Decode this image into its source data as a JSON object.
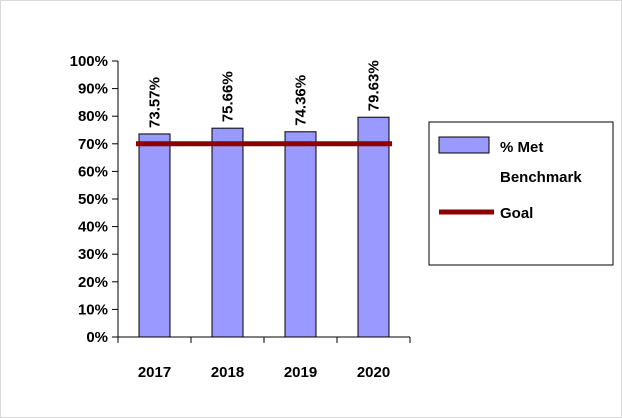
{
  "chart_data": {
    "type": "bar",
    "title": "",
    "xlabel": "",
    "ylabel": "",
    "categories": [
      "2017",
      "2018",
      "2019",
      "2020"
    ],
    "series": [
      {
        "name": "% Met Benchmark",
        "kind": "bar",
        "values": [
          73.57,
          75.66,
          74.36,
          79.63
        ],
        "data_labels": [
          "73.57%",
          "75.66%",
          "74.36%",
          "79.63%"
        ],
        "color": "#9999ff",
        "edge_color": "#000000"
      },
      {
        "name": "Goal",
        "kind": "line",
        "values": [
          70,
          70,
          70,
          70
        ],
        "color": "#8b0000"
      }
    ],
    "y_ticks": [
      0,
      10,
      20,
      30,
      40,
      50,
      60,
      70,
      80,
      90,
      100
    ],
    "y_tick_labels": [
      "0%",
      "10%",
      "20%",
      "30%",
      "40%",
      "50%",
      "60%",
      "70%",
      "80%",
      "90%",
      "100%"
    ],
    "ylim": [
      0,
      100
    ],
    "grid": false,
    "legend": {
      "position": "right",
      "entries": [
        {
          "label_lines": [
            "% Met",
            "Benchmark"
          ]
        },
        {
          "label_lines": [
            "Goal"
          ]
        }
      ]
    }
  }
}
